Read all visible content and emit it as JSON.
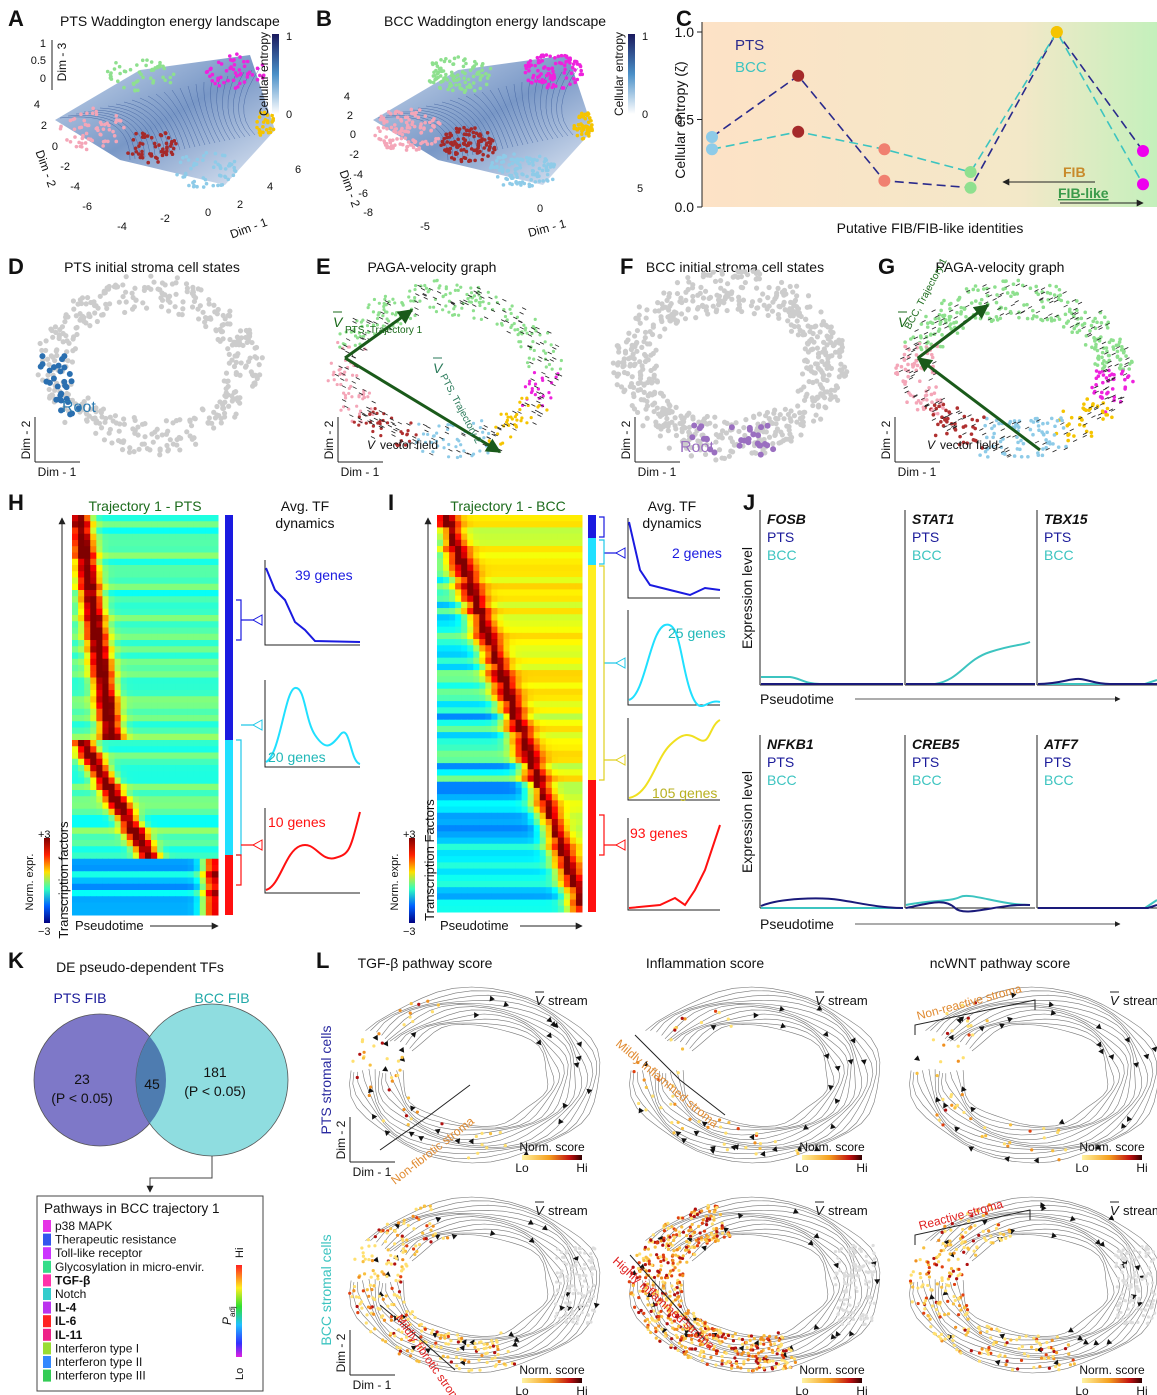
{
  "chart_data": {
    "type": "line",
    "letter": "C",
    "y_label": "Cellular entropy (ζ)",
    "x_label": "Putative FIB/FIB-like identities",
    "categories": [
      null,
      null,
      null,
      null,
      null,
      null
    ],
    "point_colors": [
      "#8ecbe8",
      "#a52a2a",
      "#f08070",
      "#8fe08f",
      "#f5c400",
      "#ee00ee"
    ],
    "series": [
      {
        "name": "PTS",
        "color": "#2a2a8c",
        "values": [
          0.4,
          0.75,
          0.15,
          0.11,
          1.0,
          0.32
        ]
      },
      {
        "name": "BCC",
        "color": "#3cc4c0",
        "values": [
          0.33,
          0.43,
          0.33,
          0.2,
          1.0,
          0.13
        ]
      }
    ],
    "ylim": [
      0,
      1
    ],
    "yticks": [
      {
        "value": 0,
        "label": "0.0"
      },
      0.5,
      {
        "value": 1,
        "label": "1.0"
      }
    ],
    "annotations": [
      "FIB",
      "FIB-like"
    ]
  },
  "panels": {
    "A": {
      "letter": "A",
      "title": "PTS Waddington energy landscape",
      "colorbar_label": "Cellular entropy",
      "colorbar_ticks": [
        1,
        0
      ],
      "z_label": "Dim - 3",
      "z_ticks": [
        1,
        0.5,
        0
      ],
      "y_label": "Dim - 2",
      "y_ticks": [
        4,
        2,
        0,
        -2,
        -4,
        -6
      ],
      "x_label": "Dim - 1",
      "x_ticks": [
        -4,
        -2,
        0,
        2,
        4,
        6
      ]
    },
    "B": {
      "letter": "B",
      "title": "BCC Waddington energy landscape",
      "colorbar_label": "Cellular entropy",
      "colorbar_ticks": [
        1,
        0
      ],
      "y_label": "Dim - 2",
      "y_ticks": [
        4,
        2,
        0,
        -2,
        -4,
        -6,
        -8
      ],
      "x_label": "Dim - 1",
      "x_ticks": [
        -5,
        0,
        5
      ]
    },
    "D": {
      "letter": "D",
      "title": "PTS initial stroma cell states",
      "root": "Root",
      "y_label": "Dim - 2",
      "x_label": "Dim - 1"
    },
    "E": {
      "letter": "E",
      "title": "PAGA-velocity graph",
      "vector": "V",
      "trajectory_1": "PTS, Trajectory 1",
      "trajectory_2": "PTS, Trajectory 2",
      "field": "vector field",
      "y_label": "Dim - 2",
      "x_label": "Dim - 1"
    },
    "F": {
      "letter": "F",
      "title": "BCC initial stroma cell states",
      "root": "Root",
      "y_label": "Dim - 2",
      "x_label": "Dim - 1"
    },
    "G": {
      "letter": "G",
      "title": "PAGA-velocity graph",
      "vector": "V",
      "trajectory_1": "BCC, Trajectory 1",
      "field": "vector field",
      "y_label": "Dim - 2",
      "x_label": "Dim - 1"
    },
    "H": {
      "letter": "H",
      "heatmap_title": "Trajectory 1 - PTS",
      "dynamics_title": [
        "Avg. TF",
        "dynamics"
      ],
      "clusters": [
        "39 genes",
        "20 genes",
        "10 genes"
      ],
      "y_label": "Transcription factors",
      "x_label": "Pseudotime",
      "colorbar_label": "Norm. expr.",
      "colorbar_ticks": [
        {
          "value": 3,
          "label": "+3"
        },
        {
          "value": -3,
          "label": "−3"
        }
      ]
    },
    "I": {
      "letter": "I",
      "heatmap_title": "Trajectory 1 - BCC",
      "dynamics_title": [
        "Avg. TF",
        "dynamics"
      ],
      "clusters": [
        "2 genes",
        "25 genes",
        "105 genes",
        "93 genes"
      ],
      "y_label": "Transcription Factors",
      "x_label": "Pseudotime",
      "colorbar_label": "Norm. expr.",
      "colorbar_ticks": [
        {
          "value": 3,
          "label": "+3"
        },
        {
          "value": -3,
          "label": "−3"
        }
      ]
    },
    "J": {
      "letter": "J",
      "genes": [
        "FOSB",
        "STAT1",
        "TBX15",
        "NFKB1",
        "CREB5",
        "ATF7"
      ],
      "legend": [
        "PTS",
        "BCC"
      ],
      "y_label": "Expression level",
      "x_label": "Pseudotime"
    },
    "K": {
      "letter": "K",
      "title": "DE pseudo-dependent TFs",
      "sets": [
        "PTS FIB",
        "BCC FIB"
      ],
      "counts": [
        23,
        45,
        181
      ],
      "p_note": "(P < 0.05)",
      "box_title": "Pathways in BCC trajectory 1",
      "pathways": [
        {
          "label": "p38 MAPK",
          "bold": false,
          "color": "#e633e6"
        },
        {
          "label": "Therapeutic resistance",
          "bold": false,
          "color": "#3355ee"
        },
        {
          "label": "Toll-like receptor",
          "bold": false,
          "color": "#cc33ff"
        },
        {
          "label": "Glycosylation in micro-envir.",
          "bold": false,
          "color": "#33dd88"
        },
        {
          "label": "TGF-β",
          "bold": true,
          "color": "#ff33aa"
        },
        {
          "label": "Notch",
          "bold": false,
          "color": "#33cccc"
        },
        {
          "label": "IL-4",
          "bold": true,
          "color": "#bb33ee"
        },
        {
          "label": "IL-6",
          "bold": true,
          "color": "#ff2222"
        },
        {
          "label": "IL-11",
          "bold": true,
          "color": "#ee2288"
        },
        {
          "label": "Interferon type I",
          "bold": false,
          "color": "#99dd33"
        },
        {
          "label": "Interferon type II",
          "bold": false,
          "color": "#3388ff"
        },
        {
          "label": "Interferon type III",
          "bold": false,
          "color": "#33cc55"
        }
      ],
      "colorbar": {
        "high": "Hi",
        "low": "Lo",
        "symbol": "P",
        "subscript": "adj"
      }
    },
    "L": {
      "letter": "L",
      "columns": [
        "TGF-β pathway score",
        "Inflammation score",
        "ncWNT pathway score"
      ],
      "rows": [
        "PTS stromal cells",
        "BCC stromal cells"
      ],
      "vector": "V",
      "stream": "stream",
      "score_label": "Norm. score",
      "low": "Lo",
      "high": "Hi",
      "y_label": "Dim - 2",
      "x_label": "Dim - 1",
      "annotations": [
        [
          "Non-fibrotic stroma",
          "Mildly inflammed stroma",
          "Non-reactive stroma"
        ],
        [
          "Mildly fibrotic stroma",
          "Highly inflammed stroma",
          "Reactive stroma"
        ]
      ]
    }
  }
}
